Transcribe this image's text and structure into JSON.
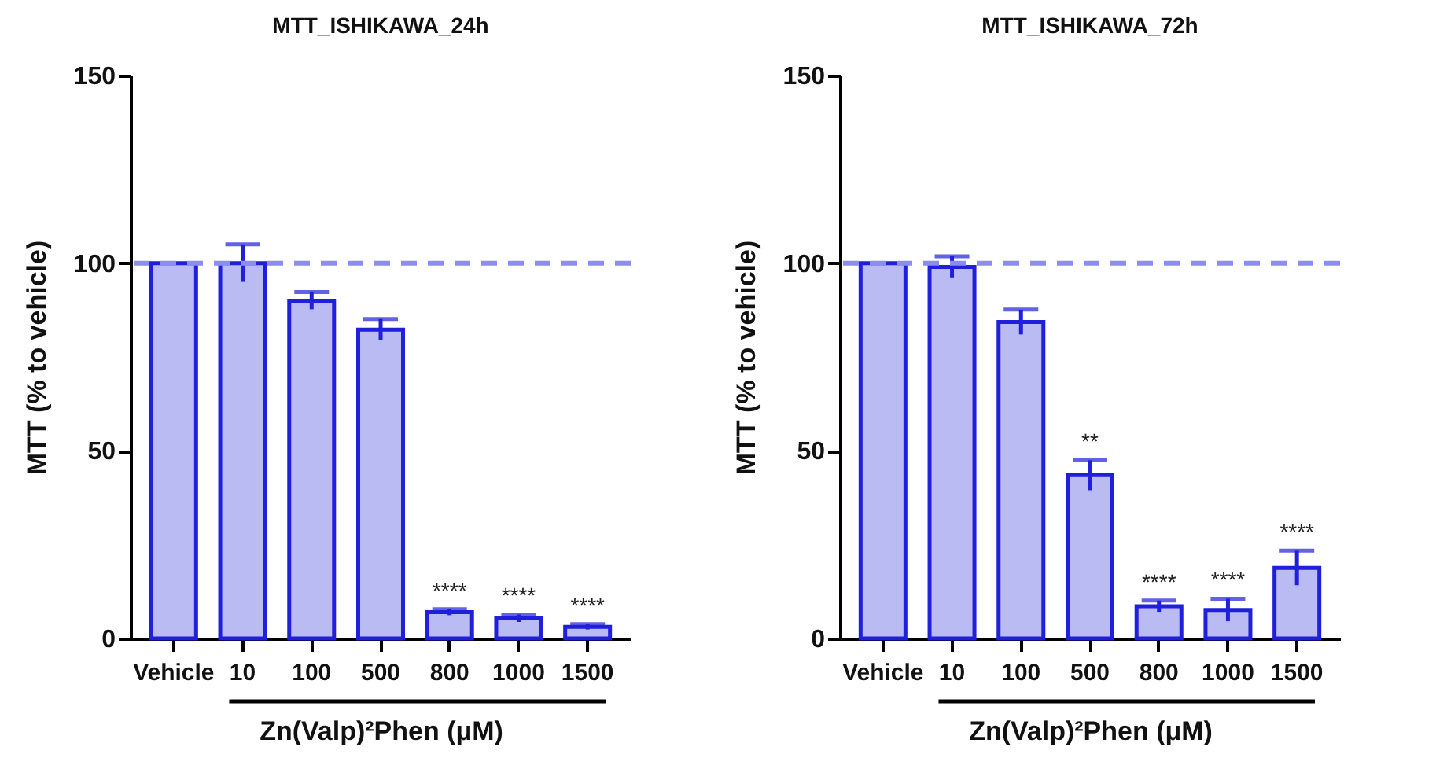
{
  "chart_data": [
    {
      "type": "bar",
      "title": "MTT_ISHIKAWA_24h",
      "xlabel": "Zn(Valp)²Phen (μM)",
      "ylabel": "MTT (% to vehicle)",
      "categories": [
        "Vehicle",
        "10",
        "100",
        "500",
        "800",
        "1000",
        "1500"
      ],
      "values": [
        100,
        100,
        90,
        82.3,
        7,
        5.4,
        3.1
      ],
      "errors": [
        null,
        5,
        2.3,
        2.8,
        0.8,
        1,
        0.7
      ],
      "colors": [
        "#1f1fdc",
        "#1f1fdc",
        "#1f1fdc",
        "#1f1fdc",
        "#1f1fdc",
        "#1f1fdc",
        "#1f1fdc"
      ],
      "ylim": [
        0,
        150
      ],
      "yticks": [
        0,
        50,
        100,
        150
      ],
      "ref_lines": [
        {
          "axis": "y",
          "value": 100,
          "color": "#8c8cf5",
          "line_style": "dashed"
        }
      ],
      "value_labels": [
        null,
        null,
        null,
        null,
        "****",
        "****",
        "****"
      ]
    },
    {
      "type": "bar",
      "title": "MTT_ISHIKAWA_72h",
      "xlabel": "Zn(Valp)²Phen (μM)",
      "ylabel": "MTT (% to vehicle)",
      "categories": [
        "Vehicle",
        "10",
        "100",
        "500",
        "800",
        "1000",
        "1500"
      ],
      "values": [
        100,
        99,
        84.3,
        43.5,
        8.6,
        7.6,
        18.8
      ],
      "errors": [
        null,
        2.8,
        3.3,
        4,
        1.5,
        3,
        4.6
      ],
      "colors": [
        "#1f1fdc",
        "#1f1fdc",
        "#1f1fdc",
        "#1f1fdc",
        "#1f1fdc",
        "#1f1fdc",
        "#1f1fdc"
      ],
      "ylim": [
        0,
        150
      ],
      "yticks": [
        0,
        50,
        100,
        150
      ],
      "ref_lines": [
        {
          "axis": "y",
          "value": 100,
          "color": "#8c8cf5",
          "line_style": "dashed"
        }
      ],
      "value_labels": [
        null,
        null,
        null,
        "**",
        "****",
        "****",
        "****"
      ]
    }
  ]
}
